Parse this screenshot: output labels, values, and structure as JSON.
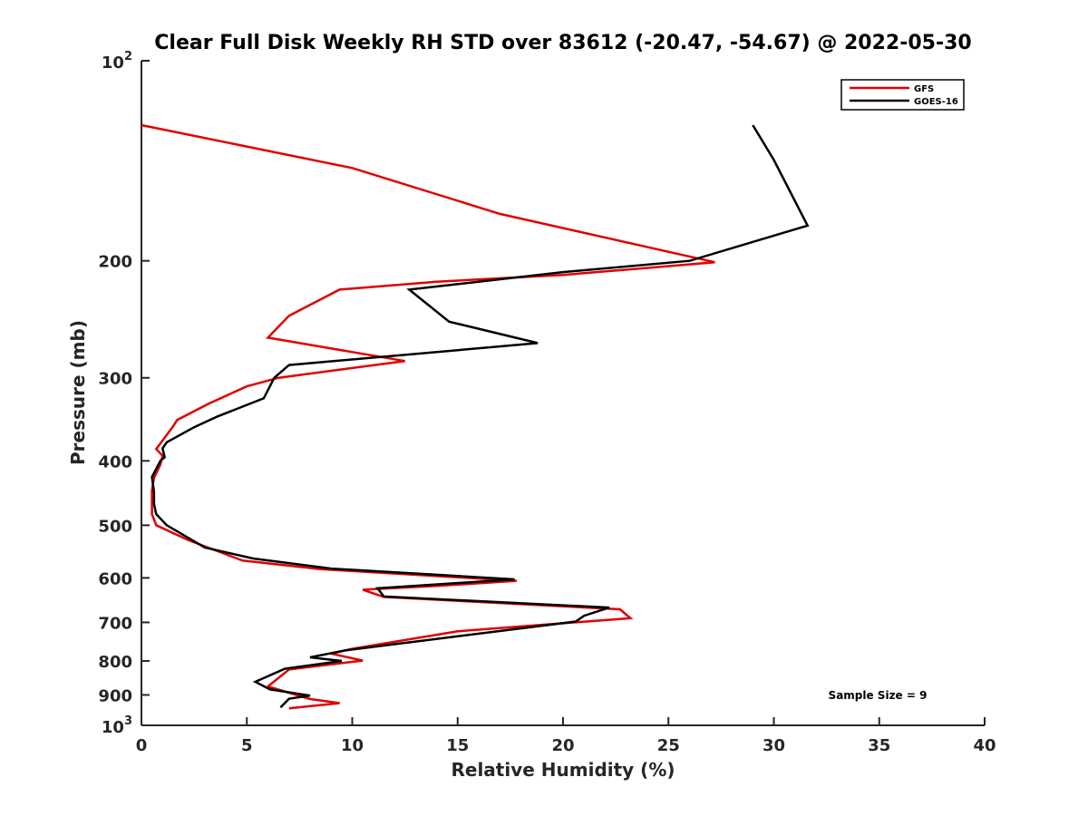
{
  "chart_data": {
    "type": "line",
    "title": "Clear Full Disk Weekly RH STD over 83612 (-20.47, -54.67) @ 2022-05-30",
    "xlabel": "Relative Humidity (%)",
    "ylabel": "Pressure (mb)",
    "xlim": [
      0,
      40
    ],
    "ylim": [
      100,
      1000
    ],
    "y_scale": "log",
    "y_reversed": true,
    "grid": false,
    "legend_position": "top-right",
    "x_ticks": [
      {
        "value": 0,
        "label": "0"
      },
      {
        "value": 5,
        "label": "5"
      },
      {
        "value": 10,
        "label": "10"
      },
      {
        "value": 15,
        "label": "15"
      },
      {
        "value": 20,
        "label": "20"
      },
      {
        "value": 25,
        "label": "25"
      },
      {
        "value": 30,
        "label": "30"
      },
      {
        "value": 35,
        "label": "35"
      },
      {
        "value": 40,
        "label": "40"
      }
    ],
    "y_ticks": [
      {
        "value": 100,
        "base": "10",
        "exp": "2"
      },
      {
        "value": 200,
        "label": "200"
      },
      {
        "value": 300,
        "label": "300"
      },
      {
        "value": 400,
        "label": "400"
      },
      {
        "value": 500,
        "label": "500"
      },
      {
        "value": 600,
        "label": "600"
      },
      {
        "value": 700,
        "label": "700"
      },
      {
        "value": 800,
        "label": "800"
      },
      {
        "value": 900,
        "label": "900"
      },
      {
        "value": 1000,
        "base": "10",
        "exp": "3"
      }
    ],
    "annotation": "Sample Size = 9",
    "series": [
      {
        "name": "GFS",
        "color": "#e00000",
        "points": [
          [
            0.0,
            125
          ],
          [
            10.0,
            145
          ],
          [
            17.0,
            170
          ],
          [
            27.2,
            201
          ],
          [
            24.0,
            205
          ],
          [
            20.0,
            210
          ],
          [
            14.0,
            215
          ],
          [
            9.4,
            221
          ],
          [
            7.0,
            242
          ],
          [
            6.0,
            261
          ],
          [
            12.5,
            283
          ],
          [
            6.5,
            300
          ],
          [
            5.0,
            309
          ],
          [
            3.2,
            328
          ],
          [
            1.7,
            347
          ],
          [
            1.5,
            355
          ],
          [
            0.7,
            384
          ],
          [
            1.0,
            393
          ],
          [
            0.9,
            405
          ],
          [
            0.6,
            424
          ],
          [
            0.5,
            443
          ],
          [
            0.5,
            465
          ],
          [
            0.5,
            481
          ],
          [
            0.7,
            500
          ],
          [
            2.2,
            526
          ],
          [
            4.8,
            565
          ],
          [
            8.5,
            582
          ],
          [
            17.8,
            606
          ],
          [
            14.0,
            617
          ],
          [
            10.5,
            625
          ],
          [
            11.5,
            641
          ],
          [
            22.7,
            669
          ],
          [
            23.2,
            690
          ],
          [
            20.0,
            702
          ],
          [
            15.0,
            722
          ],
          [
            10.0,
            767
          ],
          [
            9.0,
            780
          ],
          [
            10.5,
            799
          ],
          [
            7.0,
            824
          ],
          [
            6.0,
            874
          ],
          [
            8.0,
            913
          ],
          [
            9.4,
            926
          ],
          [
            7.0,
            943
          ]
        ]
      },
      {
        "name": "GOES-16",
        "color": "#000000",
        "points": [
          [
            29.0,
            125
          ],
          [
            30.0,
            141
          ],
          [
            31.6,
            177
          ],
          [
            26.0,
            200
          ],
          [
            20.0,
            208
          ],
          [
            12.7,
            221
          ],
          [
            14.6,
            247
          ],
          [
            18.8,
            266
          ],
          [
            7.0,
            287
          ],
          [
            6.3,
            300
          ],
          [
            5.8,
            322
          ],
          [
            3.6,
            343
          ],
          [
            2.5,
            356
          ],
          [
            1.2,
            375
          ],
          [
            1.0,
            383
          ],
          [
            1.1,
            395
          ],
          [
            0.9,
            400
          ],
          [
            0.5,
            423
          ],
          [
            0.6,
            446
          ],
          [
            0.6,
            465
          ],
          [
            0.7,
            481
          ],
          [
            1.2,
            500
          ],
          [
            3.0,
            540
          ],
          [
            5.3,
            561
          ],
          [
            9.0,
            581
          ],
          [
            17.7,
            603
          ],
          [
            11.2,
            622
          ],
          [
            11.5,
            640
          ],
          [
            22.2,
            665
          ],
          [
            21.0,
            684
          ],
          [
            20.6,
            698
          ],
          [
            9.7,
            771
          ],
          [
            8.0,
            790
          ],
          [
            9.5,
            800
          ],
          [
            6.8,
            822
          ],
          [
            5.4,
            860
          ],
          [
            6.1,
            883
          ],
          [
            8.0,
            902
          ],
          [
            7.0,
            912
          ],
          [
            6.6,
            940
          ]
        ]
      }
    ]
  }
}
